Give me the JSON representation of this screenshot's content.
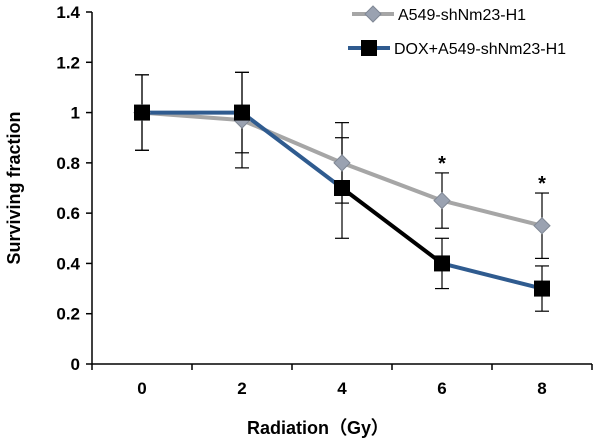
{
  "chart_data": {
    "type": "line",
    "x": [
      0,
      2,
      4,
      6,
      8
    ],
    "xlabel": "Radiation（Gy）",
    "ylabel": "Surviving fraction",
    "xlim": [
      -1,
      9
    ],
    "ylim": [
      0,
      1.4
    ],
    "x_ticks": [
      "0",
      "2",
      "4",
      "6",
      "8"
    ],
    "y_ticks": [
      "0",
      "0.2",
      "0.4",
      "0.6",
      "0.8",
      "1",
      "1.2",
      "1.4"
    ],
    "grid": false,
    "legend_position": "top-right",
    "series": [
      {
        "name": "A549-shNm23-H1",
        "values": [
          1.0,
          0.97,
          0.8,
          0.65,
          0.55
        ],
        "error": [
          0.15,
          0.19,
          0.16,
          0.11,
          0.13
        ],
        "color": "#a6a6a6",
        "marker_color": "#9aa2b1",
        "marker": "diamond"
      },
      {
        "name": "DOX+A549-shNm23-H1",
        "values": [
          1.0,
          1.0,
          0.7,
          0.4,
          0.3
        ],
        "error": [
          0.15,
          0.16,
          0.2,
          0.1,
          0.09
        ],
        "color": "#000000",
        "marker_color": "#000000",
        "marker": "square",
        "line_colors": [
          "#2f5b8f",
          "#2f5b8f",
          "#000000",
          "#2f5b8f"
        ]
      }
    ],
    "annotations": [
      {
        "text": "*",
        "x": 6
      },
      {
        "text": "*",
        "x": 8
      }
    ]
  }
}
